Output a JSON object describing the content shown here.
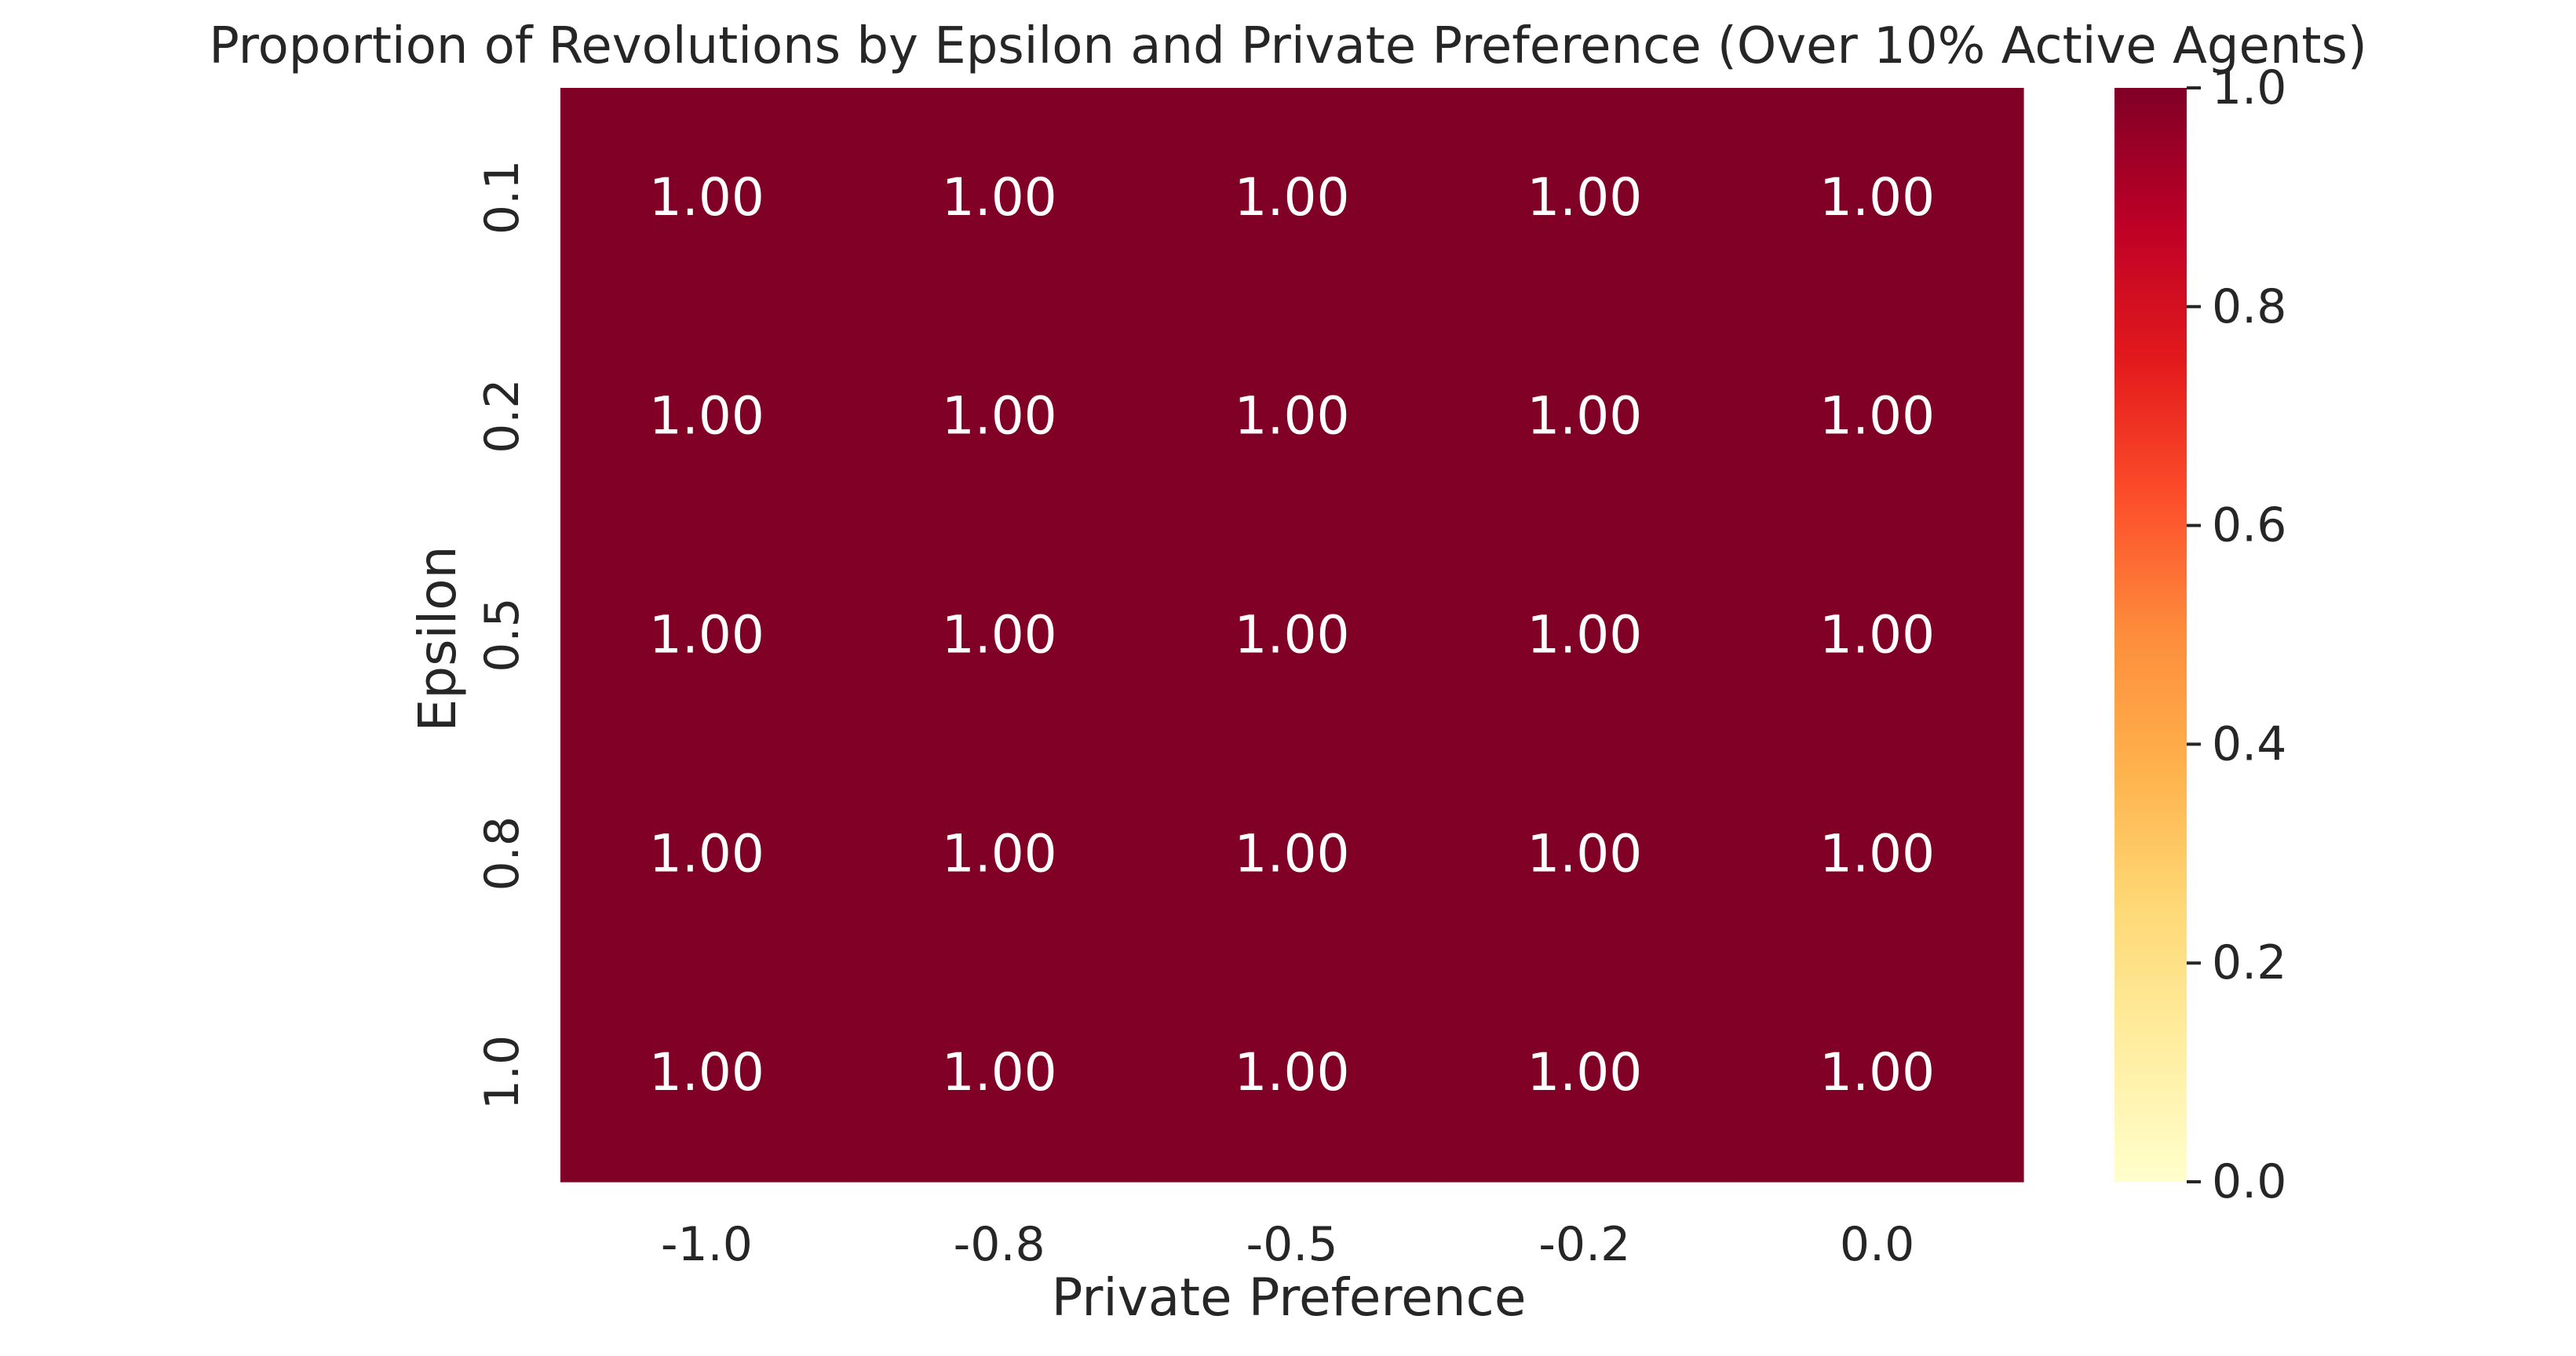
{
  "chart_data": {
    "type": "heatmap",
    "title": "Proportion of Revolutions by Epsilon and Private Preference (Over 10% Active Agents)",
    "xlabel": "Private Preference",
    "ylabel": "Epsilon",
    "x_categories": [
      "-1.0",
      "-0.8",
      "-0.5",
      "-0.2",
      "0.0"
    ],
    "y_categories": [
      "0.1",
      "0.2",
      "0.5",
      "0.8",
      "1.0"
    ],
    "values": [
      [
        1.0,
        1.0,
        1.0,
        1.0,
        1.0
      ],
      [
        1.0,
        1.0,
        1.0,
        1.0,
        1.0
      ],
      [
        1.0,
        1.0,
        1.0,
        1.0,
        1.0
      ],
      [
        1.0,
        1.0,
        1.0,
        1.0,
        1.0
      ],
      [
        1.0,
        1.0,
        1.0,
        1.0,
        1.0
      ]
    ],
    "annotation_format": "2f",
    "colormap": "YlOrRd",
    "colormap_stops": [
      "#ffffcc",
      "#ffeda0",
      "#fed976",
      "#feb24c",
      "#fd8d3c",
      "#fc4e2a",
      "#e31a1c",
      "#bd0026",
      "#800026"
    ],
    "vmin": 0.0,
    "vmax": 1.0,
    "colorbar_ticks": [
      "0.0",
      "0.2",
      "0.4",
      "0.6",
      "0.8",
      "1.0"
    ],
    "text_color": "#262626",
    "annotation_color": "#ffffff"
  }
}
